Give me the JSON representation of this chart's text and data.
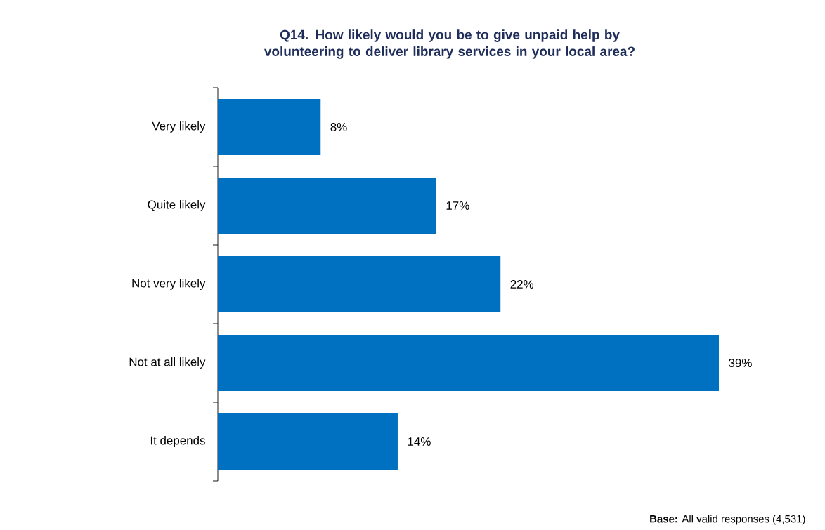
{
  "chart_data": {
    "type": "bar",
    "orientation": "horizontal",
    "title": "Q14. How likely would you be to give unpaid help by volunteering to deliver library services in your local area?",
    "categories": [
      "Very likely",
      "Quite likely",
      "Not very likely",
      "Not at all likely",
      "It depends"
    ],
    "values": [
      8,
      17,
      22,
      39,
      14
    ],
    "value_labels": [
      "8%",
      "17%",
      "22%",
      "39%",
      "14%"
    ],
    "color": "#0070c0",
    "tick_labels": "y",
    "annotations": [
      "**Base:** All valid responses (4,531)"
    ]
  }
}
